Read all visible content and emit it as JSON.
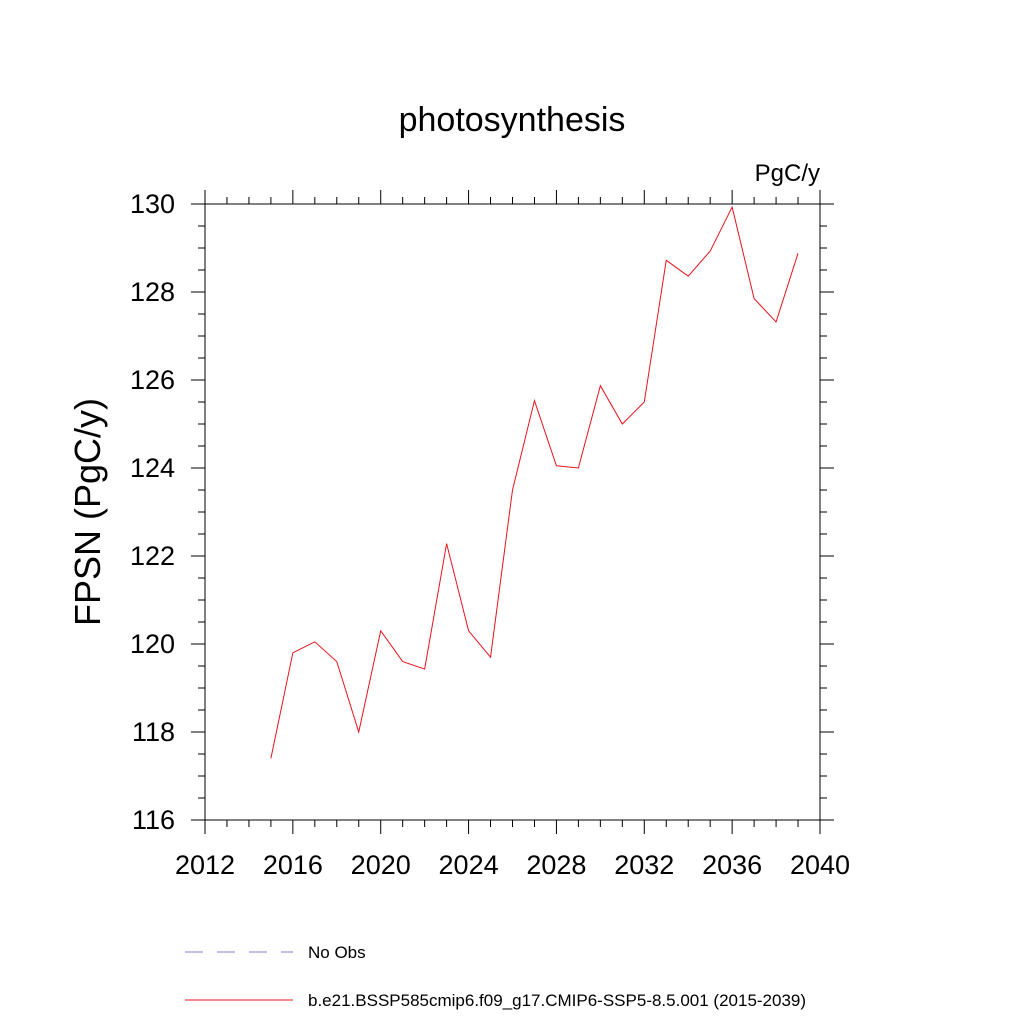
{
  "chart_data": {
    "type": "line",
    "title": "photosynthesis",
    "units_label": "PgC/y",
    "ylabel": "FPSN  (PgC/y)",
    "xlabel": "",
    "xlim": [
      2012,
      2040
    ],
    "ylim": [
      116,
      130
    ],
    "x_ticks": [
      2012,
      2016,
      2020,
      2024,
      2028,
      2032,
      2036,
      2040
    ],
    "y_ticks": [
      116,
      118,
      120,
      122,
      124,
      126,
      128,
      130
    ],
    "grid": false,
    "legend_position": "bottom",
    "colors": {
      "model": "#e8141c",
      "obs": "#8080c0",
      "axis": "#000000"
    },
    "series": [
      {
        "name": "No Obs",
        "style": "dashed",
        "x": [],
        "values": []
      },
      {
        "name": "b.e21.BSSP585cmip6.f09_g17.CMIP6-SSP5-8.5.001 (2015-2039)",
        "style": "solid",
        "x": [
          2015,
          2016,
          2017,
          2018,
          2019,
          2020,
          2021,
          2022,
          2023,
          2024,
          2025,
          2026,
          2027,
          2028,
          2029,
          2030,
          2031,
          2032,
          2033,
          2034,
          2035,
          2036,
          2037,
          2038,
          2039
        ],
        "values": [
          117.4,
          119.8,
          120.05,
          119.6,
          118.0,
          120.3,
          119.6,
          119.43,
          122.28,
          120.3,
          119.7,
          123.5,
          125.53,
          124.05,
          124.0,
          125.87,
          125.0,
          125.5,
          128.72,
          128.36,
          128.93,
          129.93,
          127.85,
          127.32,
          128.88
        ]
      }
    ]
  }
}
